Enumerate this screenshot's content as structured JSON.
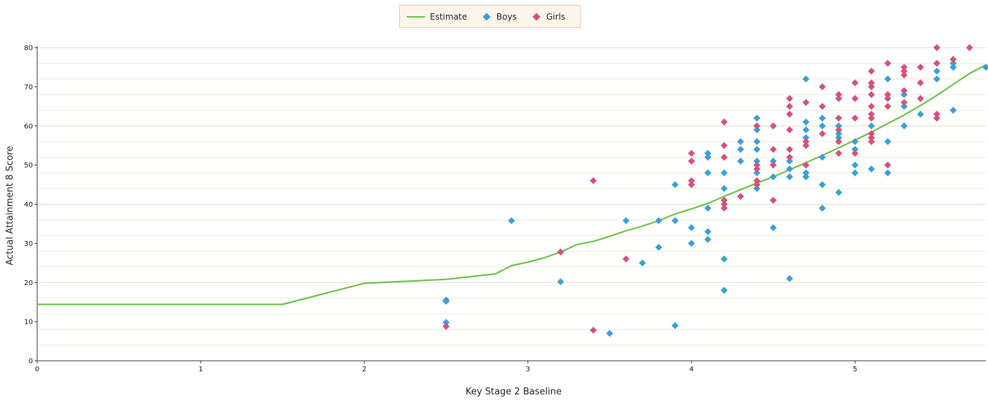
{
  "chart_data": {
    "type": "scatter",
    "xlabel": "Key Stage 2 Baseline",
    "ylabel": "Actual Attainment 8 Score",
    "xlim": [
      0,
      5.8
    ],
    "ylim": [
      0,
      80
    ],
    "x_ticks": [
      "0",
      "1",
      "2",
      "3",
      "4",
      "5"
    ],
    "y_ticks": [
      "0",
      "10",
      "20",
      "30",
      "40",
      "50",
      "60",
      "70",
      "80"
    ],
    "grid": "horizontal",
    "legend_position": "top-center",
    "series": [
      {
        "name": "Estimate",
        "kind": "line",
        "color": "#6cc04a",
        "points": [
          [
            0,
            14.4
          ],
          [
            1.5,
            14.4
          ],
          [
            2.0,
            19.8
          ],
          [
            2.5,
            20.8
          ],
          [
            2.8,
            22.2
          ],
          [
            2.9,
            24.3
          ],
          [
            3.0,
            25.2
          ],
          [
            3.1,
            26.3
          ],
          [
            3.2,
            27.8
          ],
          [
            3.3,
            29.7
          ],
          [
            3.4,
            30.5
          ],
          [
            3.5,
            31.8
          ],
          [
            3.6,
            33.2
          ],
          [
            3.7,
            34.4
          ],
          [
            3.8,
            35.8
          ],
          [
            3.9,
            37.5
          ],
          [
            4.0,
            38.8
          ],
          [
            4.1,
            40.2
          ],
          [
            4.2,
            42.0
          ],
          [
            4.3,
            43.7
          ],
          [
            4.4,
            45.4
          ],
          [
            4.5,
            47.0
          ],
          [
            4.6,
            48.8
          ],
          [
            4.7,
            50.6
          ],
          [
            4.8,
            52.5
          ],
          [
            4.9,
            54.4
          ],
          [
            5.0,
            56.4
          ],
          [
            5.1,
            58.4
          ],
          [
            5.2,
            60.6
          ],
          [
            5.3,
            62.8
          ],
          [
            5.4,
            65.2
          ],
          [
            5.5,
            67.8
          ],
          [
            5.6,
            70.6
          ],
          [
            5.7,
            73.4
          ],
          [
            5.8,
            75.6
          ]
        ]
      },
      {
        "name": "Boys",
        "kind": "scatter",
        "color": "#3b9fd6",
        "points": [
          [
            2.5,
            15.2
          ],
          [
            2.5,
            15.5
          ],
          [
            2.5,
            9.8
          ],
          [
            2.9,
            35.8
          ],
          [
            3.2,
            20.2
          ],
          [
            3.5,
            7.0
          ],
          [
            3.6,
            35.8
          ],
          [
            3.7,
            25.0
          ],
          [
            3.8,
            29.0
          ],
          [
            3.8,
            35.8
          ],
          [
            3.9,
            45.0
          ],
          [
            3.9,
            35.8
          ],
          [
            3.9,
            9.0
          ],
          [
            4.0,
            34.0
          ],
          [
            4.0,
            30.0
          ],
          [
            4.1,
            53.0
          ],
          [
            4.1,
            52.0
          ],
          [
            4.1,
            48.0
          ],
          [
            4.1,
            39.0
          ],
          [
            4.1,
            33.0
          ],
          [
            4.1,
            31.0
          ],
          [
            4.2,
            48.0
          ],
          [
            4.2,
            44.0
          ],
          [
            4.2,
            26.0
          ],
          [
            4.2,
            18.0
          ],
          [
            4.3,
            56.0
          ],
          [
            4.3,
            54.0
          ],
          [
            4.3,
            51.0
          ],
          [
            4.4,
            62.0
          ],
          [
            4.4,
            59.0
          ],
          [
            4.4,
            56.0
          ],
          [
            4.4,
            54.0
          ],
          [
            4.4,
            51.0
          ],
          [
            4.4,
            48.0
          ],
          [
            4.4,
            44.0
          ],
          [
            4.5,
            51.0
          ],
          [
            4.5,
            47.0
          ],
          [
            4.5,
            34.0
          ],
          [
            4.6,
            51.0
          ],
          [
            4.6,
            49.0
          ],
          [
            4.6,
            47.0
          ],
          [
            4.6,
            21.0
          ],
          [
            4.7,
            72.0
          ],
          [
            4.7,
            61.0
          ],
          [
            4.7,
            59.0
          ],
          [
            4.7,
            57.0
          ],
          [
            4.7,
            48.0
          ],
          [
            4.7,
            47.0
          ],
          [
            4.8,
            62.0
          ],
          [
            4.8,
            60.0
          ],
          [
            4.8,
            52.0
          ],
          [
            4.8,
            45.0
          ],
          [
            4.8,
            39.0
          ],
          [
            4.9,
            60.0
          ],
          [
            4.9,
            58.0
          ],
          [
            4.9,
            57.0
          ],
          [
            4.9,
            43.0
          ],
          [
            5.0,
            56.0
          ],
          [
            5.0,
            54.0
          ],
          [
            5.0,
            50.0
          ],
          [
            5.0,
            48.0
          ],
          [
            5.1,
            60.0
          ],
          [
            5.1,
            49.0
          ],
          [
            5.2,
            72.0
          ],
          [
            5.2,
            56.0
          ],
          [
            5.2,
            48.0
          ],
          [
            5.3,
            68.0
          ],
          [
            5.3,
            65.0
          ],
          [
            5.3,
            60.0
          ],
          [
            5.4,
            63.0
          ],
          [
            5.5,
            74.0
          ],
          [
            5.5,
            72.0
          ],
          [
            5.6,
            76.0
          ],
          [
            5.6,
            75.0
          ],
          [
            5.6,
            64.0
          ],
          [
            5.8,
            75.0
          ]
        ]
      },
      {
        "name": "Girls",
        "kind": "scatter",
        "color": "#d2527a",
        "points": [
          [
            2.5,
            8.8
          ],
          [
            3.2,
            27.8
          ],
          [
            3.4,
            46.0
          ],
          [
            3.4,
            7.8
          ],
          [
            3.6,
            26.0
          ],
          [
            4.0,
            53.0
          ],
          [
            4.0,
            51.0
          ],
          [
            4.0,
            46.0
          ],
          [
            4.0,
            45.0
          ],
          [
            4.2,
            61.0
          ],
          [
            4.2,
            55.0
          ],
          [
            4.2,
            52.0
          ],
          [
            4.2,
            41.0
          ],
          [
            4.2,
            40.0
          ],
          [
            4.2,
            39.0
          ],
          [
            4.3,
            42.0
          ],
          [
            4.4,
            60.0
          ],
          [
            4.4,
            50.0
          ],
          [
            4.4,
            49.0
          ],
          [
            4.4,
            46.0
          ],
          [
            4.4,
            45.0
          ],
          [
            4.5,
            60.0
          ],
          [
            4.5,
            54.0
          ],
          [
            4.5,
            50.0
          ],
          [
            4.5,
            41.0
          ],
          [
            4.6,
            67.0
          ],
          [
            4.6,
            65.0
          ],
          [
            4.6,
            63.0
          ],
          [
            4.6,
            59.0
          ],
          [
            4.6,
            54.0
          ],
          [
            4.6,
            52.0
          ],
          [
            4.7,
            66.0
          ],
          [
            4.7,
            56.0
          ],
          [
            4.7,
            55.0
          ],
          [
            4.7,
            50.0
          ],
          [
            4.8,
            70.0
          ],
          [
            4.8,
            65.0
          ],
          [
            4.8,
            58.0
          ],
          [
            4.9,
            68.0
          ],
          [
            4.9,
            67.0
          ],
          [
            4.9,
            62.0
          ],
          [
            4.9,
            59.0
          ],
          [
            4.9,
            56.0
          ],
          [
            4.9,
            53.0
          ],
          [
            5.0,
            71.0
          ],
          [
            5.0,
            67.0
          ],
          [
            5.0,
            62.0
          ],
          [
            5.0,
            53.0
          ],
          [
            5.1,
            74.0
          ],
          [
            5.1,
            71.0
          ],
          [
            5.1,
            70.0
          ],
          [
            5.1,
            68.0
          ],
          [
            5.1,
            65.0
          ],
          [
            5.1,
            63.0
          ],
          [
            5.1,
            62.0
          ],
          [
            5.1,
            58.0
          ],
          [
            5.1,
            57.0
          ],
          [
            5.1,
            56.0
          ],
          [
            5.2,
            76.0
          ],
          [
            5.2,
            68.0
          ],
          [
            5.2,
            67.0
          ],
          [
            5.2,
            65.0
          ],
          [
            5.2,
            50.0
          ],
          [
            5.3,
            75.0
          ],
          [
            5.3,
            74.0
          ],
          [
            5.3,
            73.0
          ],
          [
            5.3,
            69.0
          ],
          [
            5.3,
            66.0
          ],
          [
            5.4,
            75.0
          ],
          [
            5.4,
            71.0
          ],
          [
            5.4,
            67.0
          ],
          [
            5.5,
            80.0
          ],
          [
            5.5,
            76.0
          ],
          [
            5.5,
            63.0
          ],
          [
            5.5,
            62.0
          ],
          [
            5.6,
            77.0
          ],
          [
            5.7,
            80.0
          ]
        ]
      }
    ]
  }
}
